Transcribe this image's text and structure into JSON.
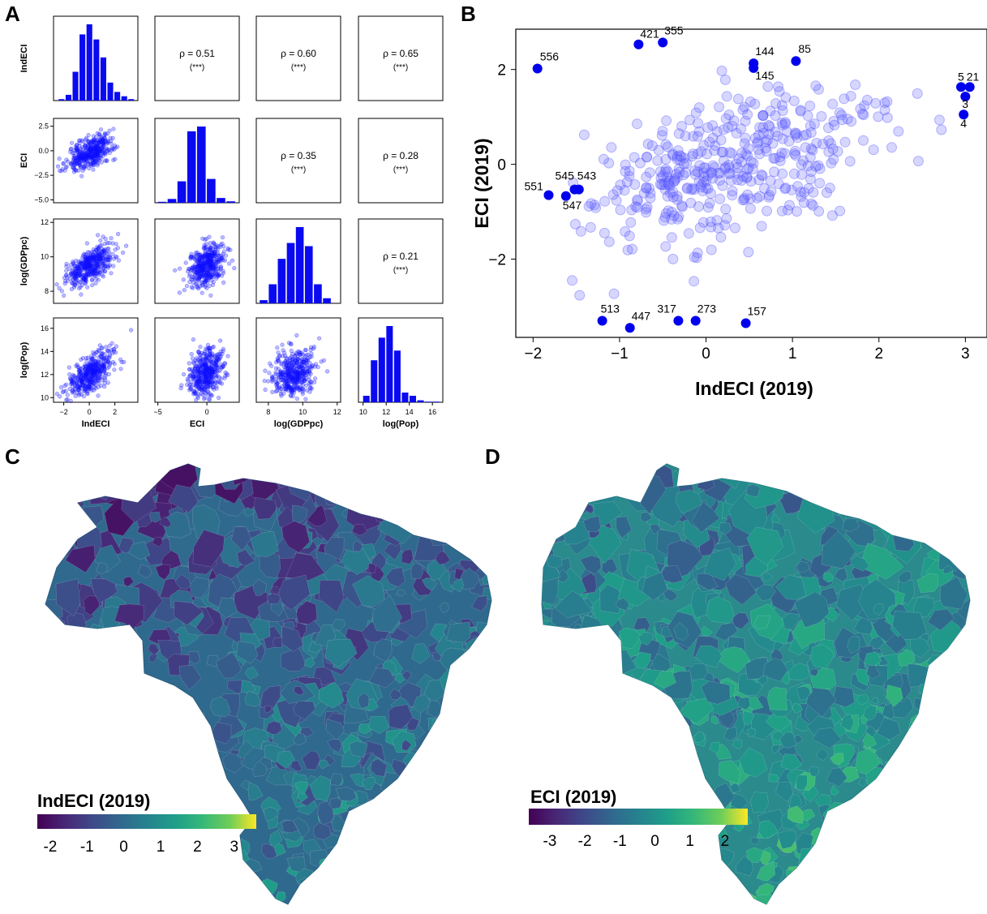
{
  "panel_letters": {
    "a": "A",
    "b": "B",
    "c": "C",
    "d": "D"
  },
  "chart_data": [
    {
      "panel": "A",
      "type": "scatter",
      "variables": [
        "IndECI",
        "ECI",
        "log(GDPpc)",
        "log(Pop)"
      ],
      "variable_labels_left": [
        "IndECI",
        "ECI",
        "log(GDPpc)",
        "log(Pop)"
      ],
      "variable_labels_bottom": [
        "IndECI",
        "ECI",
        "log(GDPpc)",
        "log(Pop)"
      ],
      "ticks": {
        "IndECI": [
          "-2",
          "0",
          "2"
        ],
        "ECI": [
          "-5",
          "0"
        ],
        "log(GDPpc)": [
          "8",
          "10",
          "12"
        ],
        "log(Pop)": [
          "10",
          "12",
          "14",
          "16"
        ]
      },
      "yticks": {
        "ECI": [
          "2.5",
          "0.0",
          "-2.5",
          "-5.0"
        ],
        "log(GDPpc)": [
          "12",
          "10",
          "8"
        ],
        "log(Pop)": [
          "16",
          "14",
          "12",
          "10"
        ]
      },
      "correlations": [
        {
          "pair": [
            "IndECI",
            "ECI"
          ],
          "rho": "ρ = 0.51",
          "sig": "(***)"
        },
        {
          "pair": [
            "IndECI",
            "log(GDPpc)"
          ],
          "rho": "ρ = 0.60",
          "sig": "(***)"
        },
        {
          "pair": [
            "IndECI",
            "log(Pop)"
          ],
          "rho": "ρ = 0.65",
          "sig": "(***)"
        },
        {
          "pair": [
            "ECI",
            "log(GDPpc)"
          ],
          "rho": "ρ = 0.35",
          "sig": "(***)"
        },
        {
          "pair": [
            "ECI",
            "log(Pop)"
          ],
          "rho": "ρ = 0.28",
          "sig": "(***)"
        },
        {
          "pair": [
            "log(GDPpc)",
            "log(Pop)"
          ],
          "rho": "ρ = 0.21",
          "sig": "(***)"
        }
      ],
      "histograms": {
        "IndECI": {
          "range": [
            -2.4,
            3.6
          ],
          "counts": [
            2,
            8,
            40,
            92,
            106,
            85,
            60,
            25,
            12,
            6,
            2
          ]
        },
        "ECI": {
          "range": [
            -5,
            3
          ],
          "counts": [
            2,
            8,
            45,
            150,
            160,
            50,
            10,
            3
          ]
        },
        "log(GDPpc)": {
          "range": [
            7.5,
            11.7
          ],
          "counts": [
            5,
            30,
            70,
            95,
            120,
            90,
            30,
            8
          ]
        },
        "log(Pop)": {
          "range": [
            10,
            16.7
          ],
          "counts": [
            10,
            65,
            100,
            118,
            80,
            15,
            10,
            3,
            1,
            1
          ]
        }
      },
      "color": "#1010ff"
    },
    {
      "panel": "B",
      "type": "scatter",
      "xlabel": "IndECI (2019)",
      "ylabel": "ECI (2019)",
      "xlim": [
        -2.2,
        3.25
      ],
      "ylim": [
        -3.65,
        2.85
      ],
      "xticks": [
        "-2",
        "-1",
        "0",
        "1",
        "2",
        "3"
      ],
      "yticks": [
        "2",
        "0",
        "-2"
      ],
      "color": "#1010ff",
      "labeled_points": [
        {
          "label": "556",
          "x": -1.95,
          "y": 2.02
        },
        {
          "label": "421",
          "x": -0.78,
          "y": 2.53
        },
        {
          "label": "355",
          "x": -0.5,
          "y": 2.57
        },
        {
          "label": "144",
          "x": 0.55,
          "y": 2.13
        },
        {
          "label": "145",
          "x": 0.55,
          "y": 2.03
        },
        {
          "label": "85",
          "x": 1.04,
          "y": 2.18
        },
        {
          "label": "5",
          "x": 2.95,
          "y": 1.63
        },
        {
          "label": "21",
          "x": 3.05,
          "y": 1.63
        },
        {
          "label": "3",
          "x": 3.0,
          "y": 1.43
        },
        {
          "label": "4",
          "x": 2.98,
          "y": 1.05
        },
        {
          "label": "551",
          "x": -1.82,
          "y": -0.65
        },
        {
          "label": "545",
          "x": -1.52,
          "y": -0.53
        },
        {
          "label": "543",
          "x": -1.47,
          "y": -0.53
        },
        {
          "label": "547",
          "x": -1.62,
          "y": -0.67
        },
        {
          "label": "513",
          "x": -1.2,
          "y": -3.3
        },
        {
          "label": "447",
          "x": -0.88,
          "y": -3.45
        },
        {
          "label": "317",
          "x": -0.32,
          "y": -3.3
        },
        {
          "label": "273",
          "x": -0.12,
          "y": -3.3
        },
        {
          "label": "157",
          "x": 0.46,
          "y": -3.35
        }
      ]
    },
    {
      "panel": "C",
      "type": "heatmap",
      "colorbar_title": "IndECI (2019)",
      "colorbar_ticks": [
        "-2",
        "-1",
        "0",
        "1",
        "2",
        "3"
      ],
      "colorbar_range": [
        -2.35,
        3.6
      ],
      "colormap": "viridis"
    },
    {
      "panel": "D",
      "type": "heatmap",
      "colorbar_title": "ECI (2019)",
      "colorbar_ticks": [
        "-3",
        "-2",
        "-1",
        "0",
        "1",
        "2"
      ],
      "colorbar_range": [
        -3.6,
        2.65
      ],
      "colormap": "viridis"
    }
  ]
}
